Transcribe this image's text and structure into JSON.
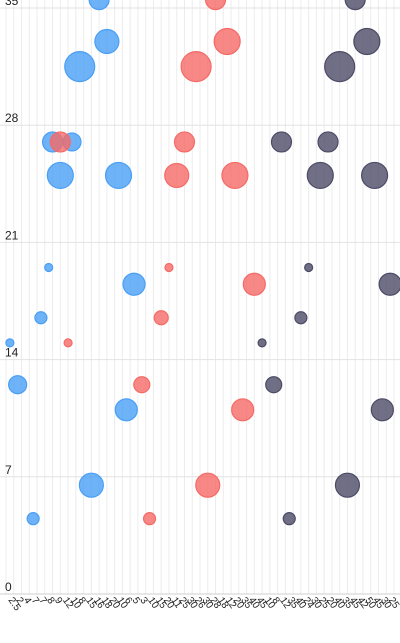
{
  "chart_data": {
    "type": "scatter",
    "title": "",
    "xlabel": "",
    "ylabel": "",
    "xlim": [
      0,
      50
    ],
    "ylim": [
      0,
      35
    ],
    "y_ticks": [
      "0",
      "7",
      "14",
      "21",
      "28",
      "35"
    ],
    "x_ticks": [
      "2.5",
      "2",
      "4",
      "7",
      "7",
      "8",
      "9",
      "12",
      "10",
      "8",
      "15",
      "16",
      "18",
      "20",
      "10",
      "6",
      "5",
      "3",
      "10",
      "15",
      "20",
      "11",
      "25",
      "30",
      "26",
      "30",
      "28",
      "18",
      "12",
      "20",
      "35",
      "40",
      "45",
      "10",
      "8",
      "12",
      "35",
      "40",
      "24",
      "30",
      "25",
      "20",
      "40",
      "35",
      "45",
      "42",
      "50",
      "45",
      "30",
      "25"
    ],
    "grid": true,
    "series": [
      {
        "color": "#4a9ff5",
        "points": [
          {
            "x": 0.5,
            "y": 15.0,
            "size": 4
          },
          {
            "x": 1.5,
            "y": 12.5,
            "size": 9
          },
          {
            "x": 3.5,
            "y": 4.5,
            "size": 6
          },
          {
            "x": 6.0,
            "y": 27.0,
            "size": 10
          },
          {
            "x": 4.5,
            "y": 16.5,
            "size": 6
          },
          {
            "x": 5.5,
            "y": 19.5,
            "size": 4
          },
          {
            "x": 7.0,
            "y": 25.0,
            "size": 13
          },
          {
            "x": 8.5,
            "y": 27.0,
            "size": 9
          },
          {
            "x": 9.5,
            "y": 31.5,
            "size": 15
          },
          {
            "x": 11.0,
            "y": 6.5,
            "size": 12
          },
          {
            "x": 12.0,
            "y": 35.5,
            "size": 10
          },
          {
            "x": 13.0,
            "y": 33.0,
            "size": 12
          },
          {
            "x": 14.5,
            "y": 25.0,
            "size": 13
          },
          {
            "x": 15.5,
            "y": 11.0,
            "size": 11
          },
          {
            "x": 16.5,
            "y": 18.5,
            "size": 11
          }
        ]
      },
      {
        "color": "#f56a66",
        "points": [
          {
            "x": 8.0,
            "y": 15.0,
            "size": 4
          },
          {
            "x": 7.0,
            "y": 27.0,
            "size": 10
          },
          {
            "x": 18.5,
            "y": 4.5,
            "size": 6
          },
          {
            "x": 17.5,
            "y": 12.5,
            "size": 8
          },
          {
            "x": 20.0,
            "y": 16.5,
            "size": 7
          },
          {
            "x": 21.0,
            "y": 19.5,
            "size": 4
          },
          {
            "x": 22.0,
            "y": 25.0,
            "size": 12
          },
          {
            "x": 23.0,
            "y": 27.0,
            "size": 10
          },
          {
            "x": 24.5,
            "y": 31.5,
            "size": 15
          },
          {
            "x": 26.0,
            "y": 6.5,
            "size": 12
          },
          {
            "x": 27.0,
            "y": 35.5,
            "size": 10
          },
          {
            "x": 28.5,
            "y": 33.0,
            "size": 13
          },
          {
            "x": 29.5,
            "y": 25.0,
            "size": 13
          },
          {
            "x": 30.5,
            "y": 11.0,
            "size": 11
          },
          {
            "x": 32.0,
            "y": 18.5,
            "size": 11
          }
        ]
      },
      {
        "color": "#4c4b66",
        "points": [
          {
            "x": 33.0,
            "y": 15.0,
            "size": 4
          },
          {
            "x": 34.5,
            "y": 12.5,
            "size": 8
          },
          {
            "x": 36.5,
            "y": 4.5,
            "size": 6
          },
          {
            "x": 35.5,
            "y": 27.0,
            "size": 10
          },
          {
            "x": 38.0,
            "y": 16.5,
            "size": 6
          },
          {
            "x": 39.0,
            "y": 19.5,
            "size": 4
          },
          {
            "x": 40.5,
            "y": 25.0,
            "size": 13
          },
          {
            "x": 41.5,
            "y": 27.0,
            "size": 10
          },
          {
            "x": 43.0,
            "y": 31.5,
            "size": 15
          },
          {
            "x": 44.0,
            "y": 6.5,
            "size": 12
          },
          {
            "x": 45.0,
            "y": 35.5,
            "size": 10
          },
          {
            "x": 46.5,
            "y": 33.0,
            "size": 13
          },
          {
            "x": 47.5,
            "y": 25.0,
            "size": 13
          },
          {
            "x": 48.5,
            "y": 11.0,
            "size": 11
          },
          {
            "x": 49.5,
            "y": 18.5,
            "size": 11
          }
        ]
      }
    ]
  }
}
